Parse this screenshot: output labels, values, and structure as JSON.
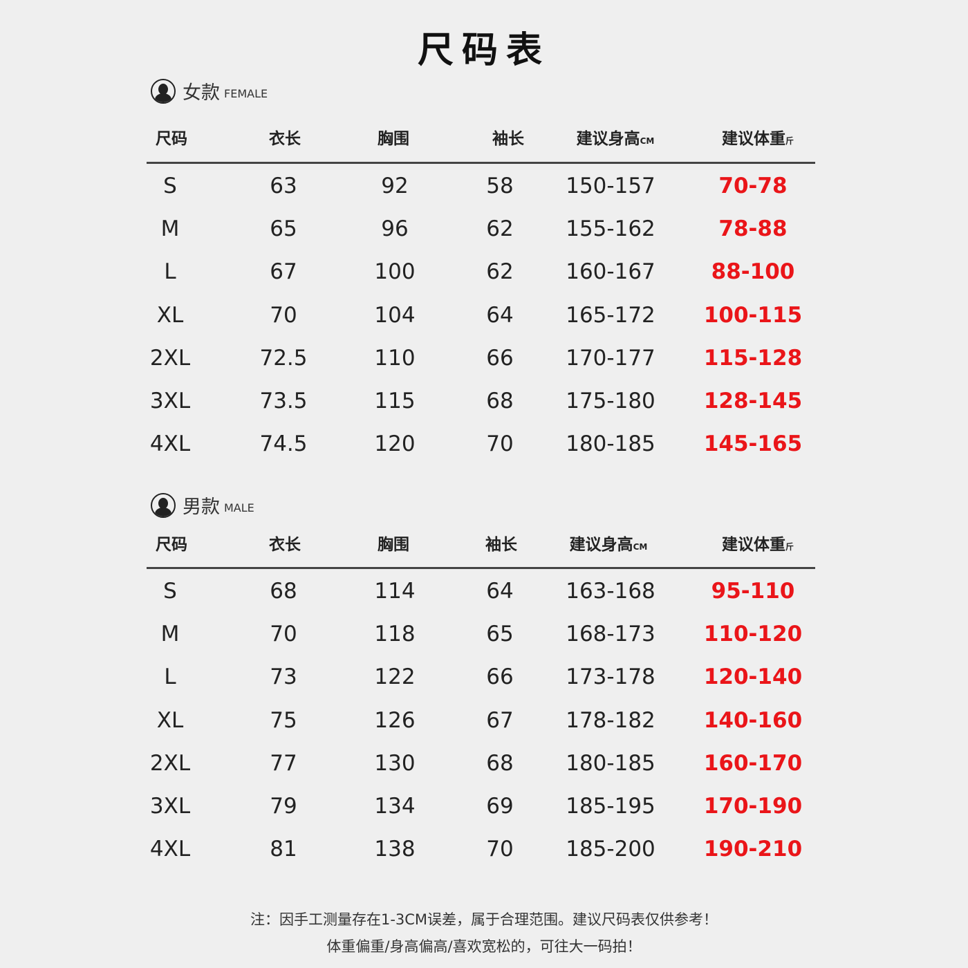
{
  "title": "尺码表",
  "columns": [
    "尺码",
    "衣长",
    "胸围",
    "袖长",
    "建议身高",
    "建议体重"
  ],
  "units": {
    "height": "CM",
    "weight": "斤"
  },
  "colors": {
    "weight_text": "#ea1519",
    "text": "#222222",
    "background": "#efefef"
  },
  "female": {
    "label_cn": "女款",
    "label_en": "FEMALE",
    "icon": "female-avatar-icon",
    "rows": [
      [
        "S",
        "63",
        "92",
        "58",
        "150-157",
        "70-78"
      ],
      [
        "M",
        "65",
        "96",
        "62",
        "155-162",
        "78-88"
      ],
      [
        "L",
        "67",
        "100",
        "62",
        "160-167",
        "88-100"
      ],
      [
        "XL",
        "70",
        "104",
        "64",
        "165-172",
        "100-115"
      ],
      [
        "2XL",
        "72.5",
        "110",
        "66",
        "170-177",
        "115-128"
      ],
      [
        "3XL",
        "73.5",
        "115",
        "68",
        "175-180",
        "128-145"
      ],
      [
        "4XL",
        "74.5",
        "120",
        "70",
        "180-185",
        "145-165"
      ]
    ]
  },
  "male": {
    "label_cn": "男款",
    "label_en": "MALE",
    "icon": "male-avatar-icon",
    "rows": [
      [
        "S",
        "68",
        "114",
        "64",
        "163-168",
        "95-110"
      ],
      [
        "M",
        "70",
        "118",
        "65",
        "168-173",
        "110-120"
      ],
      [
        "L",
        "73",
        "122",
        "66",
        "173-178",
        "120-140"
      ],
      [
        "XL",
        "75",
        "126",
        "67",
        "178-182",
        "140-160"
      ],
      [
        "2XL",
        "77",
        "130",
        "68",
        "180-185",
        "160-170"
      ],
      [
        "3XL",
        "79",
        "134",
        "69",
        "185-195",
        "170-190"
      ],
      [
        "4XL",
        "81",
        "138",
        "70",
        "185-200",
        "190-210"
      ]
    ]
  },
  "notes": [
    "注：因手工测量存在1-3CM误差，属于合理范围。建议尺码表仅供参考！",
    "体重偏重/身高偏高/喜欢宽松的，可往大一码拍！"
  ]
}
